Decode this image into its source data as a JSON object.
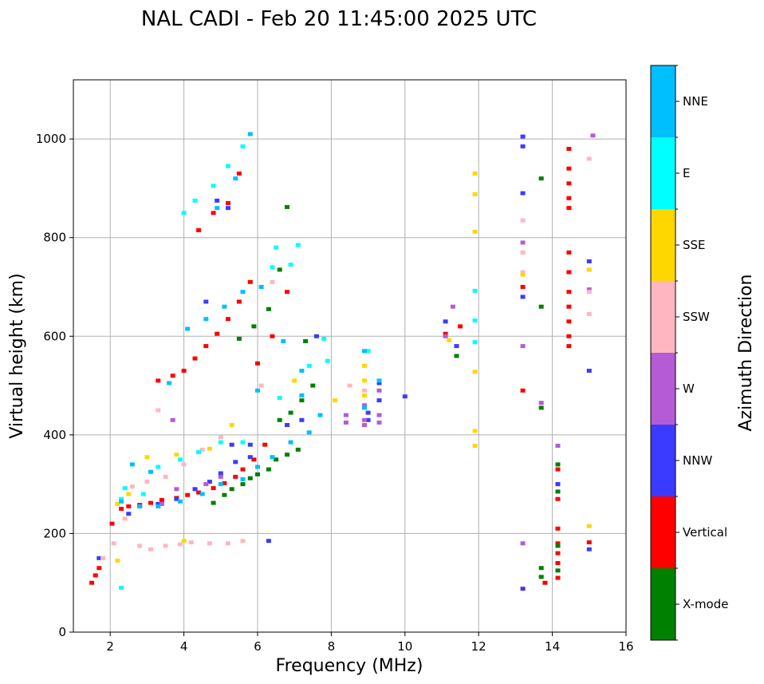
{
  "chart_data": {
    "type": "scatter",
    "title": "NAL CADI - Feb 20 11:45:00 2025 UTC",
    "xlabel": "Frequency (MHz)",
    "ylabel": "Virtual height (km)",
    "xlim": [
      1,
      16
    ],
    "ylim": [
      0,
      1120
    ],
    "xticks": [
      "2",
      "4",
      "6",
      "8",
      "10",
      "12",
      "14",
      "16"
    ],
    "yticks": [
      "0",
      "200",
      "400",
      "600",
      "800",
      "1000"
    ],
    "grid": true,
    "colorbar": {
      "title": "Azimuth Direction",
      "categories": [
        {
          "name": "X-mode",
          "color": "#008000"
        },
        {
          "name": "Vertical",
          "color": "#ff0000"
        },
        {
          "name": "NNW",
          "color": "#3b3bff"
        },
        {
          "name": "W",
          "color": "#b65bd6"
        },
        {
          "name": "SSW",
          "color": "#ffb6c1"
        },
        {
          "name": "SSE",
          "color": "#ffd700"
        },
        {
          "name": "E",
          "color": "#00ffff"
        },
        {
          "name": "NNE",
          "color": "#00bfff"
        }
      ]
    },
    "traces": [
      {
        "series": "Vertical",
        "points": [
          [
            1.5,
            100
          ],
          [
            1.6,
            115
          ],
          [
            1.7,
            130
          ],
          [
            2.05,
            220
          ],
          [
            2.3,
            250
          ],
          [
            2.5,
            255
          ],
          [
            2.8,
            258
          ],
          [
            3.1,
            262
          ],
          [
            3.4,
            268
          ],
          [
            3.8,
            272
          ],
          [
            4.1,
            278
          ],
          [
            4.4,
            283
          ],
          [
            4.8,
            292
          ],
          [
            5.1,
            302
          ],
          [
            5.4,
            315
          ],
          [
            5.6,
            330
          ],
          [
            5.9,
            350
          ],
          [
            6.2,
            380
          ],
          [
            3.3,
            510
          ],
          [
            3.7,
            520
          ],
          [
            4.0,
            530
          ],
          [
            4.3,
            555
          ],
          [
            4.6,
            580
          ],
          [
            4.9,
            605
          ],
          [
            5.2,
            635
          ],
          [
            5.5,
            670
          ],
          [
            5.8,
            710
          ],
          [
            4.4,
            815
          ],
          [
            4.8,
            850
          ],
          [
            5.2,
            870
          ],
          [
            5.5,
            930
          ],
          [
            6.0,
            545
          ],
          [
            6.4,
            600
          ],
          [
            6.8,
            690
          ],
          [
            11.1,
            605
          ],
          [
            11.5,
            620
          ],
          [
            13.2,
            490
          ],
          [
            13.2,
            700
          ],
          [
            14.45,
            980
          ],
          [
            14.45,
            940
          ],
          [
            14.45,
            910
          ],
          [
            14.45,
            880
          ],
          [
            14.45,
            860
          ],
          [
            14.45,
            770
          ],
          [
            14.45,
            730
          ],
          [
            14.45,
            690
          ],
          [
            14.45,
            660
          ],
          [
            14.45,
            630
          ],
          [
            14.45,
            600
          ],
          [
            14.45,
            580
          ],
          [
            14.15,
            330
          ],
          [
            14.15,
            300
          ],
          [
            14.15,
            270
          ],
          [
            14.15,
            210
          ],
          [
            14.15,
            180
          ],
          [
            14.15,
            160
          ],
          [
            14.15,
            140
          ],
          [
            14.15,
            110
          ],
          [
            13.8,
            100
          ],
          [
            15.0,
            182
          ]
        ]
      },
      {
        "series": "X-mode",
        "points": [
          [
            4.8,
            262
          ],
          [
            5.1,
            278
          ],
          [
            5.3,
            290
          ],
          [
            5.6,
            300
          ],
          [
            5.8,
            312
          ],
          [
            6.0,
            320
          ],
          [
            6.3,
            330
          ],
          [
            6.5,
            350
          ],
          [
            6.8,
            360
          ],
          [
            7.1,
            370
          ],
          [
            6.6,
            430
          ],
          [
            6.9,
            445
          ],
          [
            7.2,
            470
          ],
          [
            7.5,
            500
          ],
          [
            5.5,
            595
          ],
          [
            5.9,
            620
          ],
          [
            6.3,
            655
          ],
          [
            6.6,
            735
          ],
          [
            6.8,
            862
          ],
          [
            7.3,
            590
          ],
          [
            11.4,
            560
          ],
          [
            13.7,
            455
          ],
          [
            13.7,
            660
          ],
          [
            13.7,
            920
          ],
          [
            14.15,
            340
          ],
          [
            14.15,
            285
          ],
          [
            14.15,
            175
          ],
          [
            14.15,
            125
          ],
          [
            13.7,
            130
          ],
          [
            13.7,
            112
          ]
        ]
      },
      {
        "series": "NNW",
        "points": [
          [
            1.7,
            150
          ],
          [
            2.5,
            240
          ],
          [
            2.8,
            255
          ],
          [
            3.3,
            260
          ],
          [
            3.8,
            270
          ],
          [
            4.3,
            290
          ],
          [
            4.7,
            305
          ],
          [
            5.0,
            322
          ],
          [
            5.4,
            345
          ],
          [
            5.8,
            355
          ],
          [
            6.3,
            185
          ],
          [
            4.6,
            670
          ],
          [
            5.3,
            380
          ],
          [
            5.8,
            380
          ],
          [
            6.8,
            420
          ],
          [
            7.2,
            430
          ],
          [
            7.6,
            600
          ],
          [
            9.0,
            445
          ],
          [
            9.0,
            430
          ],
          [
            9.3,
            470
          ],
          [
            9.3,
            505
          ],
          [
            10.0,
            478
          ],
          [
            11.1,
            630
          ],
          [
            11.4,
            580
          ],
          [
            13.2,
            680
          ],
          [
            13.2,
            890
          ],
          [
            13.2,
            985
          ],
          [
            13.2,
            1005
          ],
          [
            13.2,
            88
          ],
          [
            14.15,
            300
          ],
          [
            15.0,
            530
          ],
          [
            15.0,
            752
          ],
          [
            15.0,
            168
          ],
          [
            5.2,
            860
          ],
          [
            4.9,
            875
          ]
        ]
      },
      {
        "series": "W",
        "points": [
          [
            3.4,
            260
          ],
          [
            3.8,
            290
          ],
          [
            4.6,
            300
          ],
          [
            5.0,
            315
          ],
          [
            8.4,
            440
          ],
          [
            8.4,
            425
          ],
          [
            8.9,
            460
          ],
          [
            8.9,
            430
          ],
          [
            8.9,
            420
          ],
          [
            9.3,
            440
          ],
          [
            9.3,
            425
          ],
          [
            9.3,
            490
          ],
          [
            11.1,
            600
          ],
          [
            11.3,
            660
          ],
          [
            13.2,
            180
          ],
          [
            13.2,
            580
          ],
          [
            13.2,
            790
          ],
          [
            13.7,
            465
          ],
          [
            14.15,
            378
          ],
          [
            15.0,
            695
          ],
          [
            15.1,
            1007
          ],
          [
            3.7,
            430
          ]
        ]
      },
      {
        "series": "SSW",
        "points": [
          [
            1.8,
            150
          ],
          [
            2.1,
            180
          ],
          [
            2.4,
            230
          ],
          [
            2.8,
            175
          ],
          [
            3.1,
            168
          ],
          [
            3.5,
            175
          ],
          [
            3.9,
            178
          ],
          [
            4.2,
            182
          ],
          [
            4.7,
            180
          ],
          [
            5.2,
            180
          ],
          [
            5.6,
            185
          ],
          [
            2.6,
            295
          ],
          [
            3.0,
            305
          ],
          [
            3.5,
            315
          ],
          [
            4.0,
            340
          ],
          [
            4.5,
            370
          ],
          [
            5.0,
            395
          ],
          [
            3.3,
            450
          ],
          [
            6.4,
            710
          ],
          [
            6.1,
            500
          ],
          [
            8.5,
            500
          ],
          [
            8.9,
            490
          ],
          [
            13.2,
            835
          ],
          [
            13.2,
            770
          ],
          [
            13.2,
            730
          ],
          [
            15.0,
            645
          ],
          [
            15.0,
            960
          ],
          [
            15.0,
            690
          ]
        ]
      },
      {
        "series": "SSE",
        "points": [
          [
            2.2,
            260
          ],
          [
            2.5,
            280
          ],
          [
            3.0,
            355
          ],
          [
            3.8,
            360
          ],
          [
            4.7,
            372
          ],
          [
            5.3,
            420
          ],
          [
            4.0,
            185
          ],
          [
            8.1,
            470
          ],
          [
            8.9,
            540
          ],
          [
            8.9,
            510
          ],
          [
            8.9,
            480
          ],
          [
            11.2,
            592
          ],
          [
            11.9,
            930
          ],
          [
            11.9,
            888
          ],
          [
            11.9,
            812
          ],
          [
            11.9,
            528
          ],
          [
            11.9,
            408
          ],
          [
            11.9,
            378
          ],
          [
            13.2,
            725
          ],
          [
            15.0,
            735
          ],
          [
            15.0,
            215
          ],
          [
            2.2,
            145
          ],
          [
            7.0,
            510
          ]
        ]
      },
      {
        "series": "E",
        "points": [
          [
            2.3,
            270
          ],
          [
            2.9,
            280
          ],
          [
            3.3,
            335
          ],
          [
            3.9,
            350
          ],
          [
            4.4,
            365
          ],
          [
            5.0,
            385
          ],
          [
            5.6,
            385
          ],
          [
            4.0,
            850
          ],
          [
            4.3,
            875
          ],
          [
            4.8,
            905
          ],
          [
            5.2,
            945
          ],
          [
            5.6,
            985
          ],
          [
            6.5,
            780
          ],
          [
            6.4,
            740
          ],
          [
            6.9,
            745
          ],
          [
            7.1,
            785
          ],
          [
            7.8,
            595
          ],
          [
            7.9,
            550
          ],
          [
            7.4,
            540
          ],
          [
            11.9,
            692
          ],
          [
            11.9,
            632
          ],
          [
            11.9,
            588
          ],
          [
            9.0,
            570
          ],
          [
            2.3,
            90
          ],
          [
            2.4,
            292
          ],
          [
            6.6,
            475
          ]
        ]
      },
      {
        "series": "NNE",
        "points": [
          [
            2.3,
            265
          ],
          [
            2.8,
            255
          ],
          [
            3.3,
            255
          ],
          [
            3.9,
            265
          ],
          [
            4.5,
            280
          ],
          [
            5.0,
            300
          ],
          [
            5.6,
            310
          ],
          [
            6.0,
            335
          ],
          [
            6.4,
            355
          ],
          [
            6.9,
            385
          ],
          [
            7.4,
            405
          ],
          [
            7.7,
            440
          ],
          [
            4.1,
            615
          ],
          [
            4.6,
            635
          ],
          [
            5.1,
            660
          ],
          [
            5.6,
            690
          ],
          [
            6.1,
            700
          ],
          [
            6.7,
            590
          ],
          [
            7.2,
            530
          ],
          [
            8.9,
            570
          ],
          [
            8.9,
            455
          ],
          [
            9.3,
            510
          ],
          [
            3.6,
            505
          ],
          [
            2.6,
            340
          ],
          [
            3.1,
            325
          ],
          [
            4.9,
            860
          ],
          [
            5.4,
            920
          ],
          [
            5.8,
            1010
          ],
          [
            6.0,
            490
          ],
          [
            7.2,
            480
          ]
        ]
      }
    ]
  }
}
